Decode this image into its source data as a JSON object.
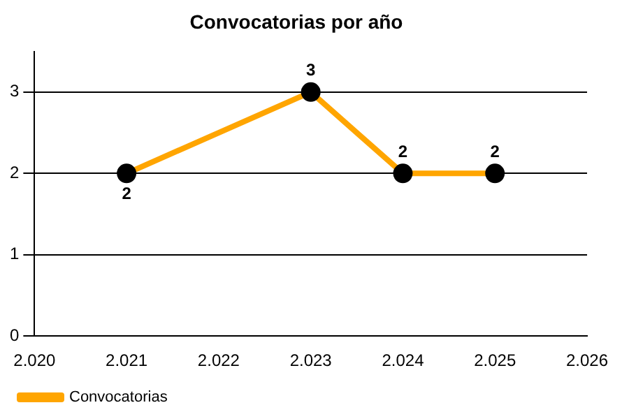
{
  "chart_data": {
    "type": "line",
    "title": "Convocatorias por año",
    "x": [
      2021,
      2023,
      2024,
      2025
    ],
    "series": [
      {
        "name": "Convocatorias",
        "color": "#ffa500",
        "values": [
          2,
          3,
          2,
          2
        ]
      }
    ],
    "xlim": [
      2020,
      2026
    ],
    "xticks": [
      {
        "value": 2020,
        "label": "2.020"
      },
      {
        "value": 2021,
        "label": "2.021"
      },
      {
        "value": 2022,
        "label": "2.022"
      },
      {
        "value": 2023,
        "label": "2.023"
      },
      {
        "value": 2024,
        "label": "2.024"
      },
      {
        "value": 2025,
        "label": "2.025"
      },
      {
        "value": 2026,
        "label": "2.026"
      }
    ],
    "ylim": [
      0,
      3.5
    ],
    "yticks": [
      0,
      1,
      2,
      3
    ],
    "grid": "y",
    "legend": "bottom left",
    "marker": "circle",
    "line_style": "solid",
    "data_labels": true
  }
}
